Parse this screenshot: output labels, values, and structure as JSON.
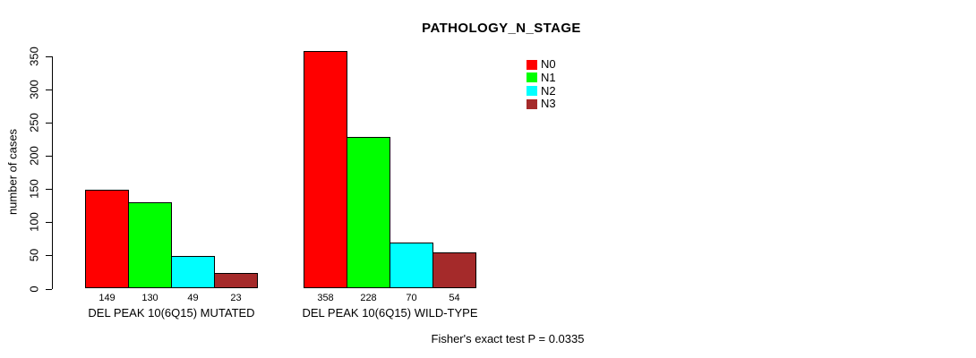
{
  "chart_data": {
    "type": "bar",
    "title": "PATHOLOGY_N_STAGE",
    "ylabel": "number of cases",
    "xlabel": "",
    "ylim": [
      0,
      350
    ],
    "yticks": [
      0,
      50,
      100,
      150,
      200,
      250,
      300,
      350
    ],
    "grid": false,
    "legend_position": "top-right",
    "categories": [
      "DEL PEAK 10(6Q15) MUTATED",
      "DEL PEAK 10(6Q15) WILD-TYPE"
    ],
    "series": [
      {
        "name": "N0",
        "color": "#ff0000",
        "values": [
          149,
          358
        ]
      },
      {
        "name": "N1",
        "color": "#00ff00",
        "values": [
          130,
          228
        ]
      },
      {
        "name": "N2",
        "color": "#00ffff",
        "values": [
          49,
          70
        ]
      },
      {
        "name": "N3",
        "color": "#a52a2a",
        "values": [
          23,
          54
        ]
      }
    ],
    "bar_value_labels": [
      [
        149,
        130,
        49,
        23
      ],
      [
        358,
        228,
        70,
        54
      ]
    ],
    "annotation": "Fisher's exact test P = 0.0335"
  }
}
